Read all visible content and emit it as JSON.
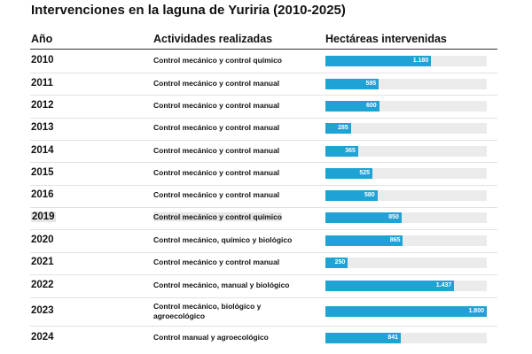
{
  "title": "Intervenciones en la laguna de Yuriria (2010-2025)",
  "headers": {
    "year": "Año",
    "activity": "Actividades realizadas",
    "hectares": "Hectáreas intervenidas"
  },
  "colors": {
    "bar": "#1fa2d4",
    "track": "#ebebeb",
    "highlight": "#e6e6e6"
  },
  "chart_data": {
    "type": "table",
    "title": "Intervenciones en la laguna de Yuriria (2010-2025)",
    "columns": [
      "Año",
      "Actividades realizadas",
      "Hectáreas intervenidas"
    ],
    "xlim": [
      0,
      1800
    ],
    "rows": [
      {
        "year": "2010",
        "activity": "Control mecánico y control químico",
        "value": 1180,
        "label": "1.180"
      },
      {
        "year": "2011",
        "activity": "Control mecánico y control manual",
        "value": 595,
        "label": "595"
      },
      {
        "year": "2012",
        "activity": "Control mecánico y control manual",
        "value": 600,
        "label": "600"
      },
      {
        "year": "2013",
        "activity": "Control mecánico y control manual",
        "value": 285,
        "label": "285"
      },
      {
        "year": "2014",
        "activity": "Control mecánico y control manual",
        "value": 365,
        "label": "365"
      },
      {
        "year": "2015",
        "activity": "Control mecánico y control manual",
        "value": 525,
        "label": "525"
      },
      {
        "year": "2016",
        "activity": "Control mecánico y control manual",
        "value": 580,
        "label": "580"
      },
      {
        "year": "2019",
        "activity": "Control mecánico y control químico",
        "value": 850,
        "label": "850",
        "highlighted": true
      },
      {
        "year": "2020",
        "activity": "Control mecánico, químico y biológico",
        "value": 865,
        "label": "865"
      },
      {
        "year": "2021",
        "activity": "Control mecánico y control manual",
        "value": 250,
        "label": "250"
      },
      {
        "year": "2022",
        "activity": "Control mecánico, manual y biológico",
        "value": 1437,
        "label": "1.437"
      },
      {
        "year": "2023",
        "activity": "Control mecánico, biológico y agroecológico",
        "value": 1800,
        "label": "1.800"
      },
      {
        "year": "2024",
        "activity": "Control manual y agroecológico",
        "value": 841,
        "label": "841"
      }
    ]
  }
}
